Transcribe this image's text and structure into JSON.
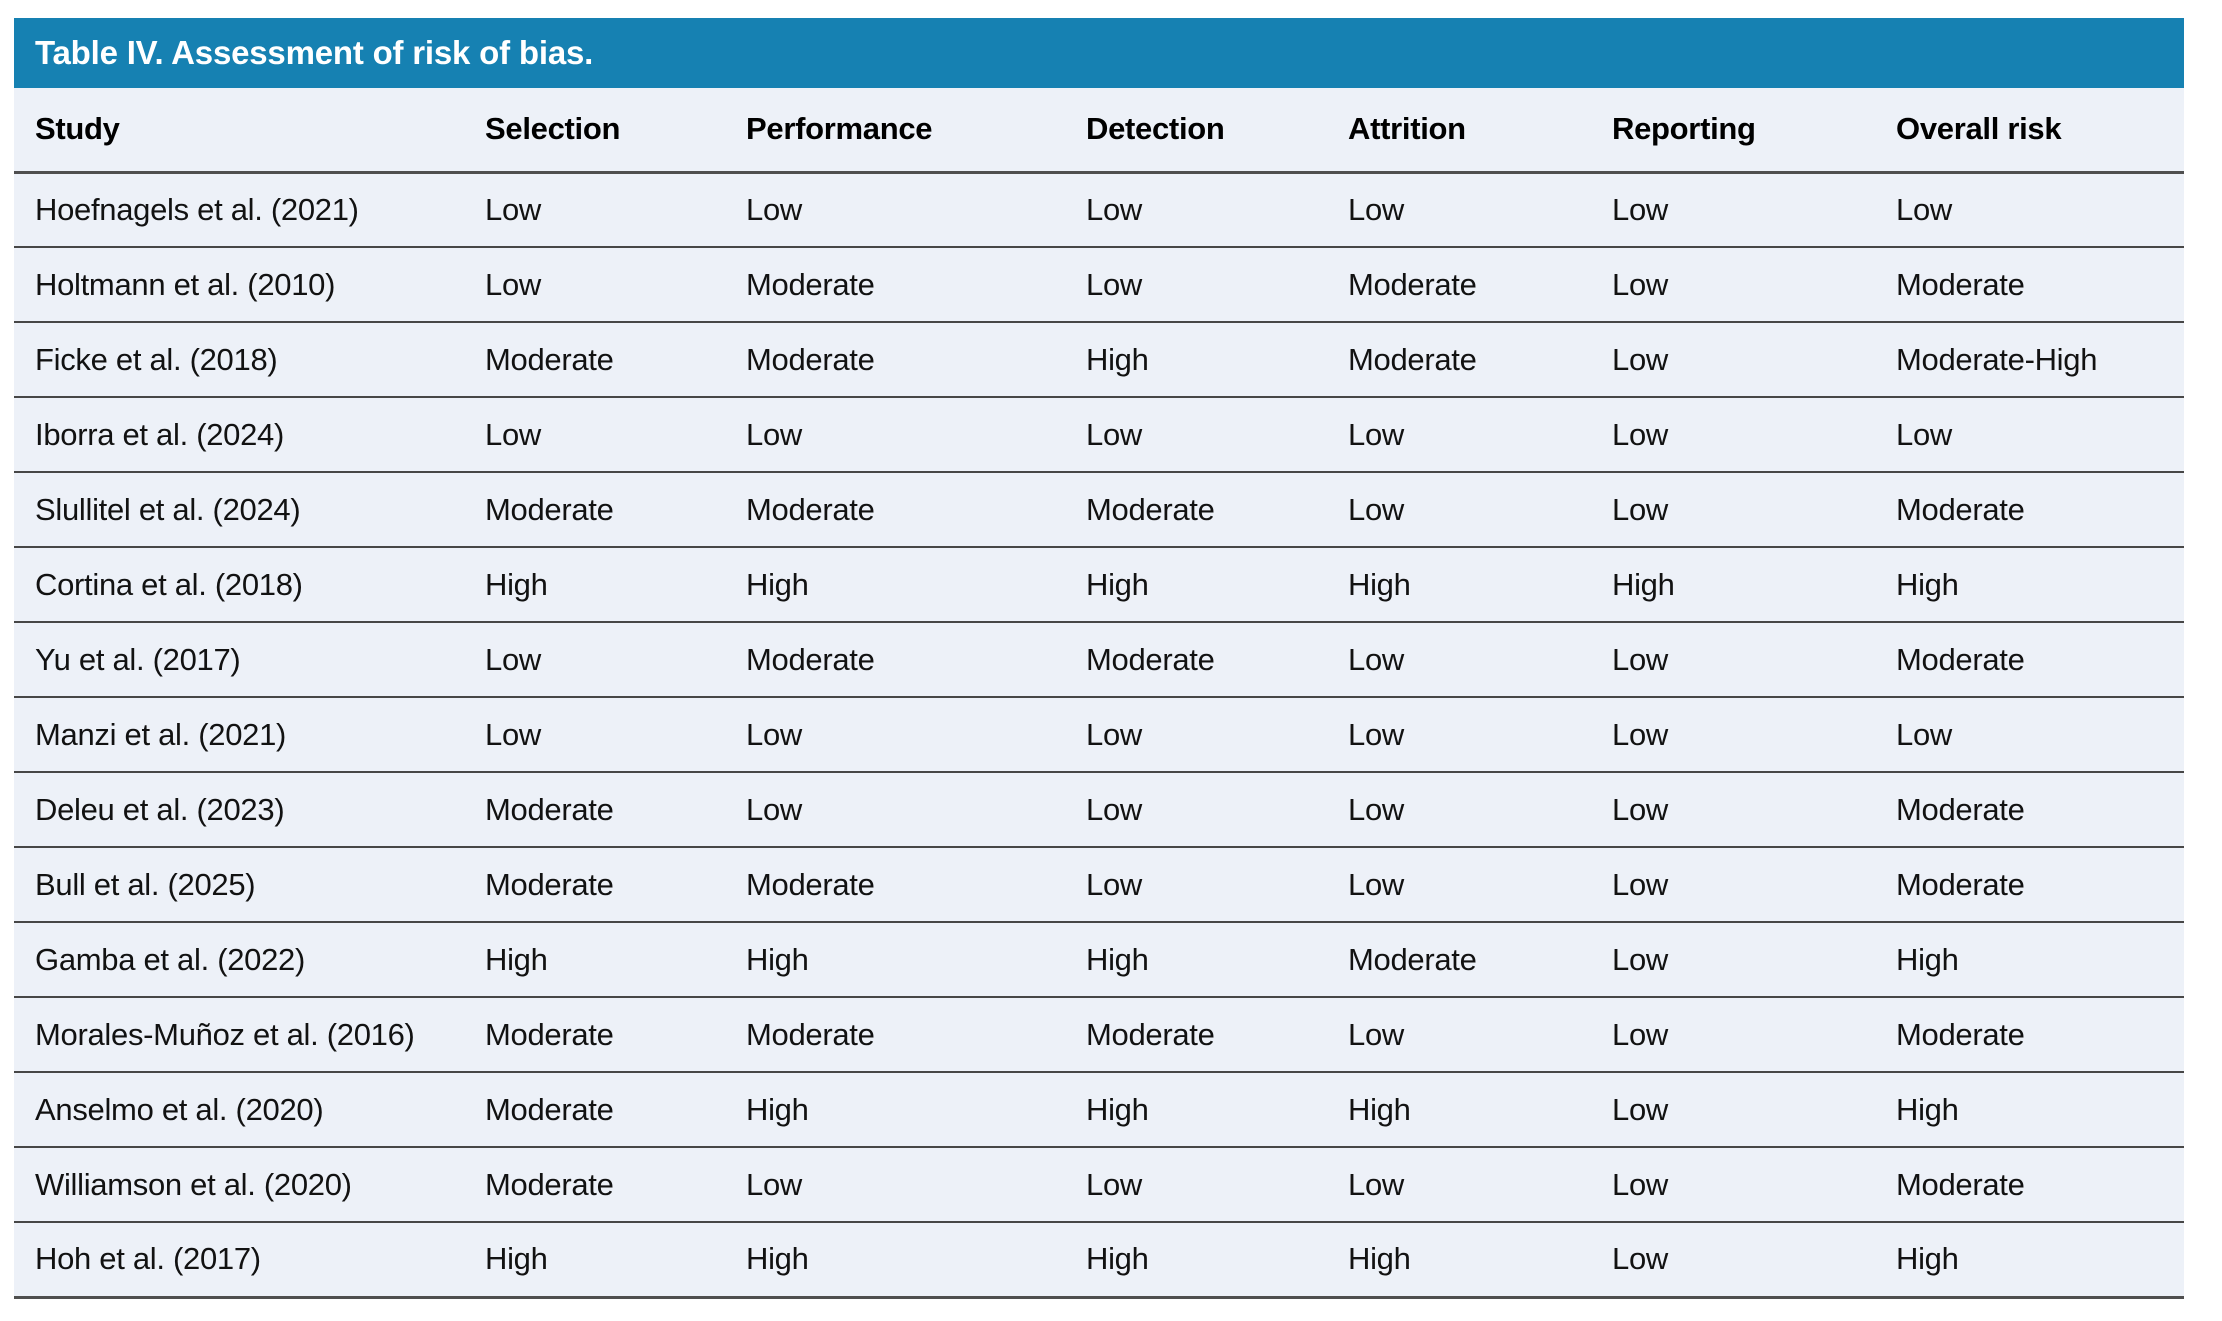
{
  "title": "Table IV. Assessment of risk of bias.",
  "colors": {
    "accent": "#1681b2",
    "table_background": "#edf1f8",
    "rule": "#474747"
  },
  "table": {
    "columns": [
      "Study",
      "Selection",
      "Performance",
      "Detection",
      "Attrition",
      "Reporting",
      "Overall risk"
    ],
    "rows": [
      [
        "Hoefnagels et al. (2021)",
        "Low",
        "Low",
        "Low",
        "Low",
        "Low",
        "Low"
      ],
      [
        "Holtmann et al. (2010)",
        "Low",
        "Moderate",
        "Low",
        "Moderate",
        "Low",
        "Moderate"
      ],
      [
        "Ficke et al. (2018)",
        "Moderate",
        "Moderate",
        "High",
        "Moderate",
        "Low",
        "Moderate-High"
      ],
      [
        "Iborra et al. (2024)",
        "Low",
        "Low",
        "Low",
        "Low",
        "Low",
        "Low"
      ],
      [
        "Slullitel et al. (2024)",
        "Moderate",
        "Moderate",
        "Moderate",
        "Low",
        "Low",
        "Moderate"
      ],
      [
        "Cortina et al. (2018)",
        "High",
        "High",
        "High",
        "High",
        "High",
        "High"
      ],
      [
        "Yu et al. (2017)",
        "Low",
        "Moderate",
        "Moderate",
        "Low",
        "Low",
        "Moderate"
      ],
      [
        "Manzi et al. (2021)",
        "Low",
        "Low",
        "Low",
        "Low",
        "Low",
        "Low"
      ],
      [
        "Deleu et al. (2023)",
        "Moderate",
        "Low",
        "Low",
        "Low",
        "Low",
        "Moderate"
      ],
      [
        "Bull et al. (2025)",
        "Moderate",
        "Moderate",
        "Low",
        "Low",
        "Low",
        "Moderate"
      ],
      [
        "Gamba et al. (2022)",
        "High",
        "High",
        "High",
        "Moderate",
        "Low",
        "High"
      ],
      [
        "Morales-Muñoz et al. (2016)",
        "Moderate",
        "Moderate",
        "Moderate",
        "Low",
        "Low",
        "Moderate"
      ],
      [
        "Anselmo et al. (2020)",
        "Moderate",
        "High",
        "High",
        "High",
        "Low",
        "High"
      ],
      [
        "Williamson et al. (2020)",
        "Moderate",
        "Low",
        "Low",
        "Low",
        "Low",
        "Moderate"
      ],
      [
        "Hoh et al. (2017)",
        "High",
        "High",
        "High",
        "High",
        "Low",
        "High"
      ]
    ]
  }
}
